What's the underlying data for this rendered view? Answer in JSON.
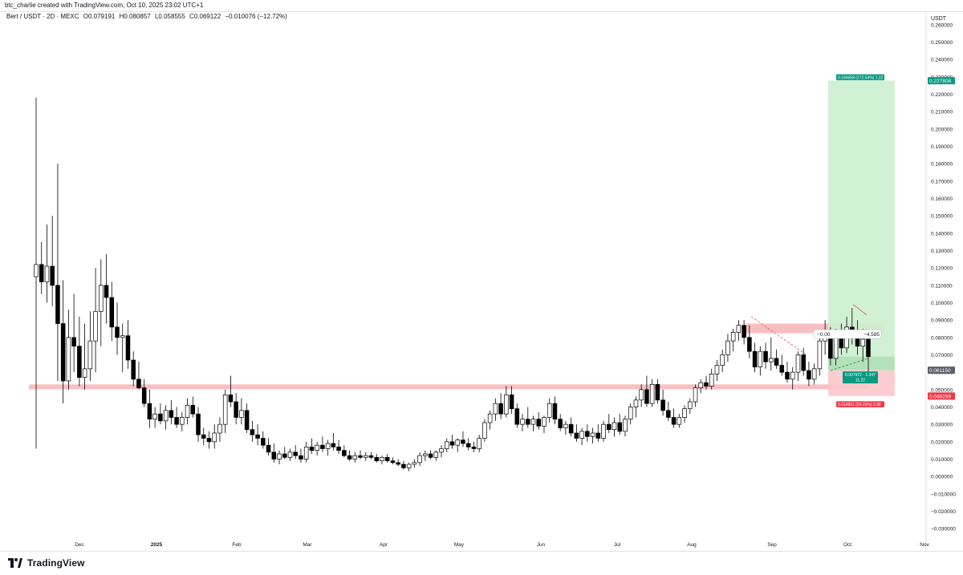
{
  "header": {
    "text": "btc_charlie created with TradingView.com, Oct 10, 2025 23:02 UTC+1"
  },
  "legend": {
    "symbol": "Bert / USDT · 2D · MEXC",
    "open": "O0.079191",
    "high": "H0.080857",
    "low": "L0.058555",
    "close": "C0.069122",
    "change": "−0.010076 (−12.72%)"
  },
  "footer": {
    "brand": "TradingView"
  },
  "colors": {
    "up_body": "#ffffff",
    "up_border": "#000000",
    "down_body": "#000000",
    "support_zone": "#f7b4b8",
    "target_zone": "#ccefcf",
    "stop_zone": "#fbc8cc",
    "target_label": "#089981",
    "stop_label": "#f23645",
    "price_label": "#5d606b"
  },
  "chart_data": {
    "type": "candlestick",
    "timeframe": "2D",
    "y_axis": {
      "label": "USDT",
      "range": [
        -0.035,
        0.265
      ],
      "ticks": [
        "0.260000",
        "0.250000",
        "0.240000",
        "0.230000",
        "0.220000",
        "0.210000",
        "0.200000",
        "0.190000",
        "0.180000",
        "0.170000",
        "0.160000",
        "0.150000",
        "0.140000",
        "0.130000",
        "0.120000",
        "0.110000",
        "0.100000",
        "0.090000",
        "0.080000",
        "0.070000",
        "0.060000",
        "0.050000",
        "0.040000",
        "0.030000",
        "0.020000",
        "0.010000",
        "0.000000",
        "−0.010000",
        "−0.020000",
        "−0.030000"
      ]
    },
    "x_axis": {
      "ticks": [
        "Dec",
        "2025",
        "Feb",
        "Mar",
        "Apr",
        "May",
        "Jun",
        "Jul",
        "Aug",
        "Sep",
        "Oct",
        "Nov"
      ]
    },
    "price_labels": [
      {
        "text": "0.227808",
        "value": 0.227808,
        "kind": "target"
      },
      {
        "text": "0.061150",
        "value": 0.06115,
        "kind": "last"
      },
      {
        "text": "0.046299",
        "value": 0.046299,
        "kind": "stop"
      }
    ],
    "annotations": [
      {
        "text": "0.166658 (272.54%) 1.22",
        "kind": "target-info"
      },
      {
        "text": "0.014851 (24.29%) 0.98",
        "kind": "stop-info"
      },
      {
        "text": "0.007972 · 1.347",
        "kind": "entry-info-1"
      },
      {
        "text": "11.22",
        "kind": "entry-info-2"
      },
      {
        "text": "−0.00",
        "kind": "note-left"
      },
      {
        "text": "−4.585",
        "kind": "note-right"
      }
    ],
    "zones": {
      "support": {
        "low": 0.0502,
        "high": 0.053
      },
      "resistance": {
        "low": 0.0825,
        "high": 0.088
      },
      "target": {
        "low": 0.06115,
        "high": 0.227808
      },
      "stop": {
        "low": 0.046299,
        "high": 0.06115
      },
      "entry": {
        "low": 0.06115,
        "high": 0.069
      }
    },
    "candles": [
      [
        0.115,
        0.218,
        0.016,
        0.122
      ],
      [
        0.122,
        0.135,
        0.105,
        0.112
      ],
      [
        0.112,
        0.145,
        0.1,
        0.121
      ],
      [
        0.121,
        0.15,
        0.098,
        0.11
      ],
      [
        0.11,
        0.18,
        0.055,
        0.088
      ],
      [
        0.088,
        0.113,
        0.042,
        0.055
      ],
      [
        0.055,
        0.096,
        0.05,
        0.08
      ],
      [
        0.08,
        0.105,
        0.06,
        0.075
      ],
      [
        0.075,
        0.092,
        0.052,
        0.057
      ],
      [
        0.057,
        0.088,
        0.05,
        0.062
      ],
      [
        0.062,
        0.095,
        0.055,
        0.078
      ],
      [
        0.078,
        0.12,
        0.06,
        0.095
      ],
      [
        0.095,
        0.125,
        0.075,
        0.11
      ],
      [
        0.11,
        0.128,
        0.088,
        0.103
      ],
      [
        0.103,
        0.112,
        0.078,
        0.086
      ],
      [
        0.086,
        0.1,
        0.07,
        0.08
      ],
      [
        0.08,
        0.088,
        0.06,
        0.081
      ],
      [
        0.081,
        0.09,
        0.062,
        0.067
      ],
      [
        0.067,
        0.072,
        0.052,
        0.056
      ],
      [
        0.056,
        0.066,
        0.05,
        0.051
      ],
      [
        0.051,
        0.056,
        0.04,
        0.042
      ],
      [
        0.042,
        0.05,
        0.028,
        0.033
      ],
      [
        0.033,
        0.04,
        0.028,
        0.036
      ],
      [
        0.036,
        0.042,
        0.03,
        0.032
      ],
      [
        0.032,
        0.041,
        0.027,
        0.038
      ],
      [
        0.038,
        0.044,
        0.03,
        0.034
      ],
      [
        0.034,
        0.04,
        0.028,
        0.03
      ],
      [
        0.03,
        0.037,
        0.026,
        0.034
      ],
      [
        0.034,
        0.045,
        0.03,
        0.041
      ],
      [
        0.041,
        0.046,
        0.034,
        0.036
      ],
      [
        0.036,
        0.04,
        0.02,
        0.024
      ],
      [
        0.024,
        0.028,
        0.018,
        0.022
      ],
      [
        0.022,
        0.026,
        0.016,
        0.02
      ],
      [
        0.02,
        0.03,
        0.016,
        0.025
      ],
      [
        0.025,
        0.034,
        0.02,
        0.03
      ],
      [
        0.03,
        0.05,
        0.025,
        0.047
      ],
      [
        0.047,
        0.058,
        0.04,
        0.043
      ],
      [
        0.043,
        0.048,
        0.03,
        0.034
      ],
      [
        0.034,
        0.045,
        0.03,
        0.038
      ],
      [
        0.038,
        0.042,
        0.025,
        0.027
      ],
      [
        0.027,
        0.032,
        0.02,
        0.024
      ],
      [
        0.024,
        0.03,
        0.018,
        0.022
      ],
      [
        0.022,
        0.026,
        0.016,
        0.018
      ],
      [
        0.018,
        0.022,
        0.012,
        0.014
      ],
      [
        0.014,
        0.019,
        0.008,
        0.01
      ],
      [
        0.01,
        0.015,
        0.007,
        0.013
      ],
      [
        0.013,
        0.017,
        0.01,
        0.011
      ],
      [
        0.011,
        0.016,
        0.009,
        0.014
      ],
      [
        0.014,
        0.018,
        0.01,
        0.012
      ],
      [
        0.012,
        0.016,
        0.008,
        0.01
      ],
      [
        0.01,
        0.02,
        0.008,
        0.017
      ],
      [
        0.017,
        0.022,
        0.013,
        0.015
      ],
      [
        0.015,
        0.02,
        0.012,
        0.018
      ],
      [
        0.018,
        0.023,
        0.014,
        0.016
      ],
      [
        0.016,
        0.021,
        0.012,
        0.019
      ],
      [
        0.019,
        0.025,
        0.015,
        0.017
      ],
      [
        0.017,
        0.021,
        0.013,
        0.015
      ],
      [
        0.015,
        0.018,
        0.011,
        0.012
      ],
      [
        0.012,
        0.015,
        0.009,
        0.01
      ],
      [
        0.01,
        0.014,
        0.008,
        0.012
      ],
      [
        0.012,
        0.015,
        0.01,
        0.011
      ],
      [
        0.011,
        0.014,
        0.009,
        0.012
      ],
      [
        0.012,
        0.014,
        0.01,
        0.011
      ],
      [
        0.011,
        0.013,
        0.008,
        0.009
      ],
      [
        0.009,
        0.012,
        0.007,
        0.011
      ],
      [
        0.011,
        0.013,
        0.008,
        0.009
      ],
      [
        0.009,
        0.011,
        0.007,
        0.008
      ],
      [
        0.008,
        0.01,
        0.006,
        0.007
      ],
      [
        0.007,
        0.009,
        0.004,
        0.005
      ],
      [
        0.005,
        0.008,
        0.003,
        0.007
      ],
      [
        0.007,
        0.01,
        0.005,
        0.008
      ],
      [
        0.008,
        0.014,
        0.006,
        0.012
      ],
      [
        0.012,
        0.015,
        0.009,
        0.013
      ],
      [
        0.013,
        0.015,
        0.01,
        0.011
      ],
      [
        0.011,
        0.015,
        0.009,
        0.014
      ],
      [
        0.014,
        0.018,
        0.011,
        0.016
      ],
      [
        0.016,
        0.022,
        0.014,
        0.02
      ],
      [
        0.02,
        0.024,
        0.016,
        0.018
      ],
      [
        0.018,
        0.022,
        0.014,
        0.021
      ],
      [
        0.021,
        0.026,
        0.017,
        0.019
      ],
      [
        0.019,
        0.022,
        0.015,
        0.017
      ],
      [
        0.017,
        0.02,
        0.014,
        0.016
      ],
      [
        0.016,
        0.024,
        0.014,
        0.022
      ],
      [
        0.022,
        0.033,
        0.02,
        0.031
      ],
      [
        0.031,
        0.038,
        0.027,
        0.036
      ],
      [
        0.036,
        0.045,
        0.032,
        0.042
      ],
      [
        0.042,
        0.048,
        0.033,
        0.036
      ],
      [
        0.036,
        0.052,
        0.034,
        0.047
      ],
      [
        0.047,
        0.052,
        0.036,
        0.039
      ],
      [
        0.039,
        0.042,
        0.028,
        0.03
      ],
      [
        0.03,
        0.036,
        0.026,
        0.033
      ],
      [
        0.033,
        0.04,
        0.028,
        0.03
      ],
      [
        0.03,
        0.035,
        0.026,
        0.033
      ],
      [
        0.033,
        0.037,
        0.027,
        0.029
      ],
      [
        0.029,
        0.035,
        0.025,
        0.034
      ],
      [
        0.034,
        0.045,
        0.031,
        0.042
      ],
      [
        0.042,
        0.046,
        0.03,
        0.033
      ],
      [
        0.033,
        0.036,
        0.026,
        0.028
      ],
      [
        0.028,
        0.032,
        0.024,
        0.03
      ],
      [
        0.03,
        0.034,
        0.023,
        0.025
      ],
      [
        0.025,
        0.03,
        0.02,
        0.022
      ],
      [
        0.022,
        0.028,
        0.018,
        0.026
      ],
      [
        0.026,
        0.03,
        0.02,
        0.023
      ],
      [
        0.023,
        0.028,
        0.019,
        0.025
      ],
      [
        0.025,
        0.03,
        0.02,
        0.022
      ],
      [
        0.022,
        0.032,
        0.02,
        0.03
      ],
      [
        0.03,
        0.036,
        0.025,
        0.027
      ],
      [
        0.027,
        0.034,
        0.023,
        0.031
      ],
      [
        0.031,
        0.036,
        0.024,
        0.026
      ],
      [
        0.026,
        0.035,
        0.023,
        0.033
      ],
      [
        0.033,
        0.042,
        0.03,
        0.04
      ],
      [
        0.04,
        0.046,
        0.034,
        0.044
      ],
      [
        0.044,
        0.053,
        0.04,
        0.05
      ],
      [
        0.05,
        0.058,
        0.04,
        0.042
      ],
      [
        0.042,
        0.056,
        0.04,
        0.053
      ],
      [
        0.053,
        0.056,
        0.042,
        0.044
      ],
      [
        0.044,
        0.05,
        0.035,
        0.038
      ],
      [
        0.038,
        0.043,
        0.032,
        0.034
      ],
      [
        0.034,
        0.039,
        0.028,
        0.03
      ],
      [
        0.03,
        0.036,
        0.028,
        0.034
      ],
      [
        0.034,
        0.041,
        0.031,
        0.039
      ],
      [
        0.039,
        0.045,
        0.036,
        0.043
      ],
      [
        0.043,
        0.053,
        0.04,
        0.051
      ],
      [
        0.051,
        0.056,
        0.048,
        0.054
      ],
      [
        0.054,
        0.058,
        0.05,
        0.052
      ],
      [
        0.052,
        0.062,
        0.05,
        0.059
      ],
      [
        0.059,
        0.067,
        0.055,
        0.064
      ],
      [
        0.064,
        0.073,
        0.06,
        0.07
      ],
      [
        0.07,
        0.082,
        0.066,
        0.078
      ],
      [
        0.078,
        0.085,
        0.072,
        0.083
      ],
      [
        0.083,
        0.09,
        0.078,
        0.087
      ],
      [
        0.087,
        0.09,
        0.076,
        0.08
      ],
      [
        0.08,
        0.087,
        0.068,
        0.072
      ],
      [
        0.072,
        0.077,
        0.06,
        0.063
      ],
      [
        0.063,
        0.075,
        0.058,
        0.072
      ],
      [
        0.072,
        0.077,
        0.062,
        0.066
      ],
      [
        0.066,
        0.08,
        0.061,
        0.068
      ],
      [
        0.068,
        0.073,
        0.062,
        0.064
      ],
      [
        0.064,
        0.07,
        0.058,
        0.06
      ],
      [
        0.06,
        0.066,
        0.054,
        0.056
      ],
      [
        0.056,
        0.063,
        0.05,
        0.06
      ],
      [
        0.06,
        0.072,
        0.055,
        0.07
      ],
      [
        0.07,
        0.074,
        0.058,
        0.061
      ],
      [
        0.061,
        0.066,
        0.052,
        0.056
      ],
      [
        0.056,
        0.065,
        0.053,
        0.062
      ],
      [
        0.062,
        0.082,
        0.058,
        0.078
      ],
      [
        0.078,
        0.09,
        0.07,
        0.08
      ],
      [
        0.08,
        0.086,
        0.064,
        0.068
      ],
      [
        0.068,
        0.085,
        0.064,
        0.082
      ],
      [
        0.082,
        0.088,
        0.07,
        0.074
      ],
      [
        0.074,
        0.092,
        0.071,
        0.086
      ],
      [
        0.086,
        0.097,
        0.076,
        0.082
      ],
      [
        0.082,
        0.09,
        0.07,
        0.075
      ],
      [
        0.075,
        0.085,
        0.066,
        0.079
      ],
      [
        0.079,
        0.081,
        0.059,
        0.069
      ]
    ]
  }
}
